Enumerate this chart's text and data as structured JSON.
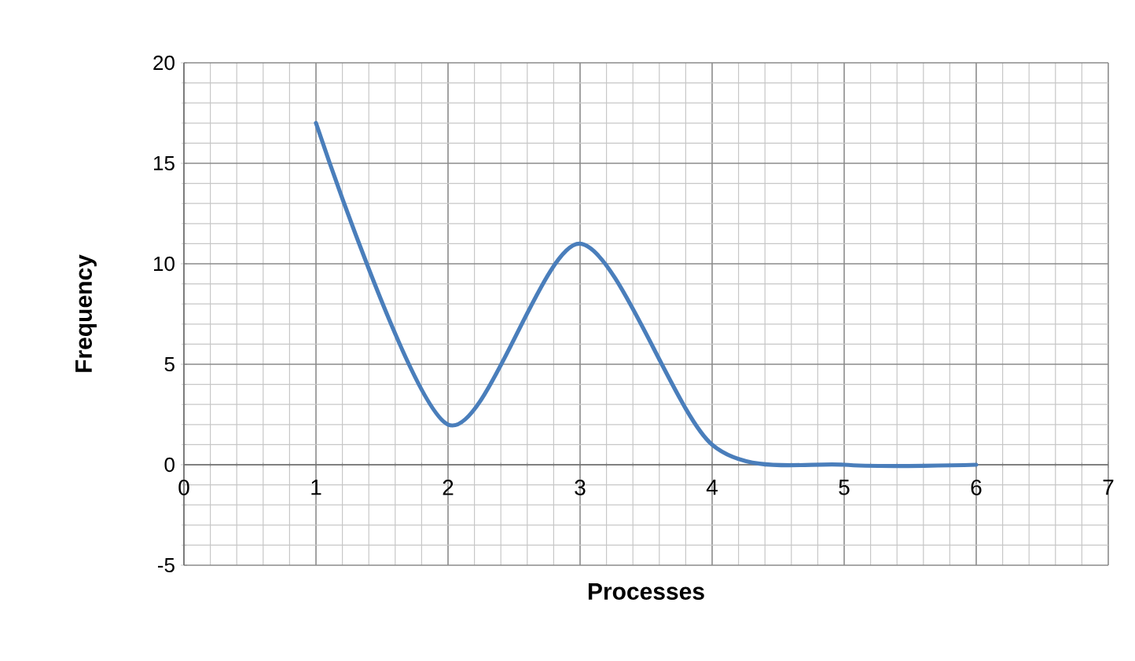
{
  "chart_data": {
    "type": "line",
    "xlabel": "Processes",
    "ylabel": "Frequency",
    "x": [
      1,
      2,
      3,
      4,
      5,
      6
    ],
    "series": [
      {
        "color": "#4a7ebb",
        "values": [
          17,
          2,
          11,
          1,
          0,
          0
        ]
      }
    ],
    "xlim": [
      0,
      7
    ],
    "ylim": [
      -5,
      20
    ],
    "xticks": [
      0,
      1,
      2,
      3,
      4,
      5,
      6,
      7
    ],
    "yticks": [
      -5,
      0,
      5,
      10,
      15,
      20
    ],
    "grid": true,
    "marker": "none",
    "line_style": "solid"
  }
}
